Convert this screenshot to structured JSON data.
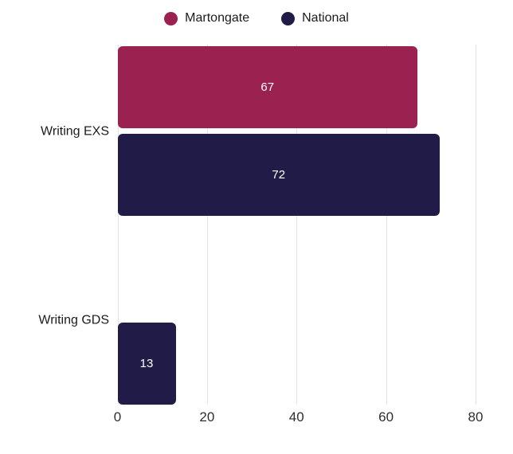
{
  "legend": {
    "items": [
      {
        "label": "Martongate",
        "color": "#9A2150"
      },
      {
        "label": "National",
        "color": "#211C47"
      }
    ]
  },
  "chart_data": {
    "type": "bar",
    "orientation": "horizontal",
    "title": "",
    "xlabel": "",
    "ylabel": "",
    "categories": [
      "Writing EXS",
      "Writing GDS"
    ],
    "series": [
      {
        "name": "Martongate",
        "color": "#9A2150",
        "values": [
          67,
          0
        ]
      },
      {
        "name": "National",
        "color": "#211C47",
        "values": [
          72,
          13
        ]
      }
    ],
    "xlim": [
      0,
      80
    ],
    "xticks": [
      0,
      20,
      40,
      60,
      80
    ],
    "grid": true,
    "legend_position": "top",
    "value_labels": "inside-center",
    "value_label_color": "#ffffff"
  }
}
